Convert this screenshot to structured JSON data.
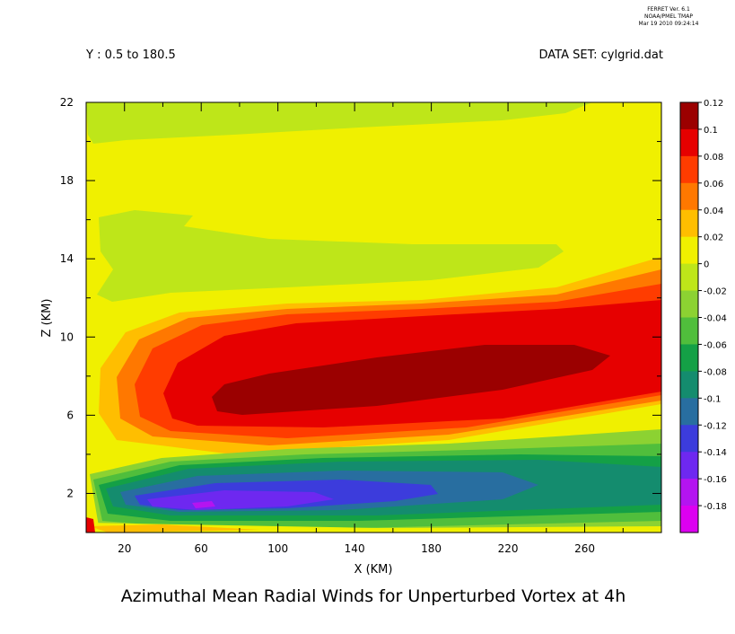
{
  "header": {
    "ferret_line1": "FERRET Ver. 6.1",
    "ferret_line2": "NOAA/PMEL TMAP",
    "ferret_line3": "Mar 19 2010 09:24:14",
    "subset": "Y : 0.5 to 180.5",
    "dataset": "DATA SET: cylgrid.dat"
  },
  "chart_data": {
    "type": "heatmap",
    "title": "Azimuthal Mean Radial Winds for Unperturbed Vortex at 4h",
    "xlabel": "X (KM)",
    "ylabel": "Z (KM)",
    "xlim": [
      0,
      300
    ],
    "ylim": [
      0,
      22
    ],
    "x_ticks": [
      20,
      60,
      100,
      140,
      180,
      220,
      260
    ],
    "y_ticks": [
      2,
      6,
      10,
      14,
      18,
      22
    ],
    "colorbar": {
      "labels": [
        "0.12",
        "0.1",
        "0.08",
        "0.06",
        "0.04",
        "0.02",
        "0",
        "-0.02",
        "-0.04",
        "-0.06",
        "-0.08",
        "-0.1",
        "-0.12",
        "-0.14",
        "-0.16",
        "-0.18"
      ],
      "colors": [
        "#9b0000",
        "#e60000",
        "#ff3c00",
        "#ff7800",
        "#ffbe00",
        "#f0f000",
        "#bee619",
        "#8cd232",
        "#50be3c",
        "#14a046",
        "#148c6e",
        "#286ea0",
        "#3c3cdc",
        "#6e28f0",
        "#b414f0",
        "#dc00f0"
      ]
    },
    "regions": [
      {
        "level": "0",
        "desc": "yellow background field"
      },
      {
        "level": "-0.02",
        "desc": "upper band near z 19-22"
      },
      {
        "level": "-0.02",
        "desc": "band near z 12-16"
      },
      {
        "level": "0.1",
        "desc": "outflow core z 6-11"
      },
      {
        "level": "0.12",
        "desc": "outflow maximum near x 70-270, z 7-9"
      },
      {
        "level": "-0.16",
        "desc": "inflow minimum near x 40-130, z 1-2"
      }
    ]
  }
}
